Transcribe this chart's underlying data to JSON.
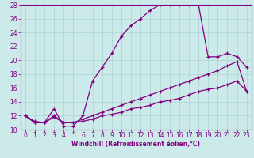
{
  "title": "",
  "xlabel": "Windchill (Refroidissement éolien,°C)",
  "ylabel": "",
  "bg_color": "#cceaea",
  "line_color": "#800080",
  "grid_color": "#aad4d4",
  "xlim": [
    -0.5,
    23.5
  ],
  "ylim": [
    10,
    28
  ],
  "xticks": [
    0,
    1,
    2,
    3,
    4,
    5,
    6,
    7,
    8,
    9,
    10,
    11,
    12,
    13,
    14,
    15,
    16,
    17,
    18,
    19,
    20,
    21,
    22,
    23
  ],
  "yticks": [
    10,
    12,
    14,
    16,
    18,
    20,
    22,
    24,
    26,
    28
  ],
  "line1_x": [
    0,
    1,
    2,
    3,
    4,
    5,
    6,
    7,
    8,
    9,
    10,
    11,
    12,
    13,
    14,
    15,
    16,
    17,
    18
  ],
  "line1_y": [
    12,
    11,
    11,
    13,
    10.5,
    10.5,
    12,
    17,
    19,
    21,
    23.5,
    25,
    26,
    27.2,
    28,
    28,
    28,
    28,
    28
  ],
  "line1b_x": [
    18,
    19,
    20,
    21,
    22,
    23
  ],
  "line1b_y": [
    28,
    20.5,
    20.5,
    21,
    20.5,
    19
  ],
  "line2_x": [
    0,
    1,
    2,
    3,
    4,
    5,
    6,
    7,
    8,
    9,
    10,
    11,
    12,
    13,
    14,
    15,
    16,
    17,
    18,
    19,
    20,
    21,
    22,
    23
  ],
  "line2_y": [
    12,
    11,
    11,
    12,
    11,
    11,
    11.5,
    12,
    12.5,
    13,
    13.5,
    14,
    14.5,
    15,
    15.5,
    16,
    16.5,
    17,
    17.5,
    18,
    18.5,
    19.2,
    19.8,
    15.5
  ],
  "line3_x": [
    0,
    1,
    2,
    3,
    4,
    5,
    6,
    7,
    8,
    9,
    10,
    11,
    12,
    13,
    14,
    15,
    16,
    17,
    18,
    19,
    20,
    21,
    22,
    23
  ],
  "line3_y": [
    12,
    11.2,
    11,
    11.8,
    11,
    11,
    11.2,
    11.5,
    12,
    12.2,
    12.5,
    13,
    13.2,
    13.5,
    14,
    14.2,
    14.5,
    15,
    15.5,
    15.8,
    16,
    16.5,
    17,
    15.5
  ],
  "tick_fontsize": 5.5,
  "xlabel_fontsize": 5.5
}
